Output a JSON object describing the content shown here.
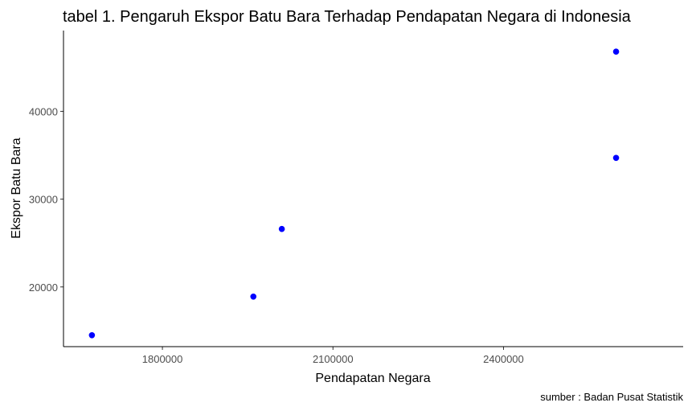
{
  "chart_data": {
    "type": "scatter",
    "title": "tabel 1. Pengaruh Ekspor Batu Bara Terhadap Pendapatan Negara di Indonesia",
    "xlabel": "Pendapatan Negara",
    "ylabel": "Ekspor Batu Bara",
    "caption": "sumber : Badan Pusat Statistik",
    "xlim": [
      1626000,
      2716000
    ],
    "ylim": [
      13200,
      49200
    ],
    "x_ticks": [
      1800000,
      2100000,
      2400000
    ],
    "x_tick_labels": [
      "1800000",
      "2100000",
      "2400000"
    ],
    "y_ticks": [
      20000,
      30000,
      40000
    ],
    "y_tick_labels": [
      "20000",
      "30000",
      "40000"
    ],
    "grid": false,
    "legend": "none",
    "point_color": "#0000ff",
    "points": [
      {
        "x": 1676000,
        "y": 14500
      },
      {
        "x": 1960000,
        "y": 18900
      },
      {
        "x": 2010000,
        "y": 26600
      },
      {
        "x": 2598000,
        "y": 34700
      },
      {
        "x": 2598000,
        "y": 46800
      }
    ]
  }
}
